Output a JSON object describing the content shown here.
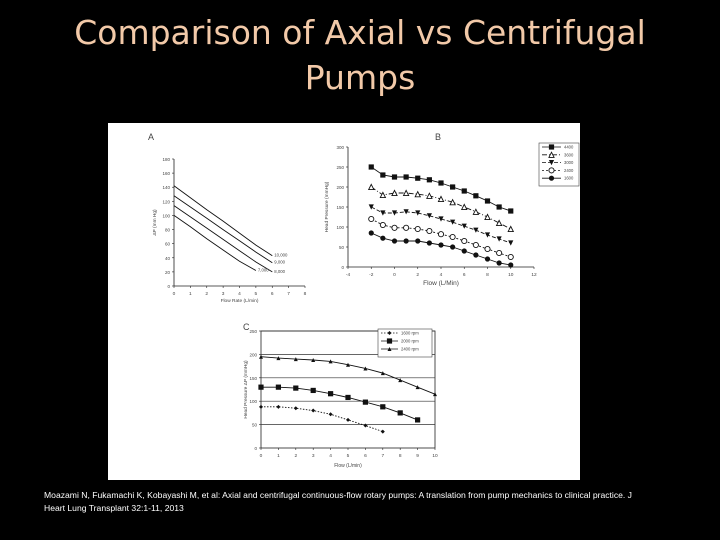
{
  "slide": {
    "title_line1": "Comparison of Axial vs Centrifugal",
    "title_line2": "Pumps",
    "citation_line1": "Moazami N, Fukamachi K, Kobayashi M, et al:  Axial and centrifugal continuous-flow rotary pumps: A translation from pump mechanics to clinical practice. J",
    "citation_line2": "Heart Lung Transplant 32:1-11, 2013"
  },
  "chart_data": [
    {
      "panel": "A",
      "type": "line",
      "xlabel": "Flow Rate (L/min)",
      "ylabel": "ΔP (mm Hg)",
      "xlim": [
        0,
        8
      ],
      "ylim": [
        0,
        180
      ],
      "xticks": [
        "0",
        "1",
        "2",
        "3",
        "4",
        "5",
        "6",
        "7",
        "8"
      ],
      "yticks": [
        "0",
        "20",
        "40",
        "60",
        "80",
        "100",
        "120",
        "140",
        "160",
        "180"
      ],
      "series": [
        {
          "name": "10,000",
          "x": [
            0,
            1,
            2,
            3,
            4,
            5,
            6
          ],
          "y": [
            142,
            125,
            108,
            92,
            75,
            58,
            43
          ]
        },
        {
          "name": "9,000",
          "x": [
            0,
            1,
            2,
            3,
            4,
            5,
            6
          ],
          "y": [
            128,
            112,
            96,
            80,
            64,
            48,
            33
          ]
        },
        {
          "name": "8,000",
          "x": [
            0,
            1,
            2,
            3,
            4,
            5,
            6
          ],
          "y": [
            114,
            98,
            82,
            66,
            50,
            34,
            20
          ]
        },
        {
          "name": "7,000",
          "x": [
            0,
            1,
            2,
            3,
            4,
            5
          ],
          "y": [
            100,
            84,
            67,
            51,
            35,
            22
          ]
        }
      ]
    },
    {
      "panel": "B",
      "type": "line",
      "xlabel": "Flow (L/Min)",
      "ylabel": "Head Pressure (mmHg)",
      "xlim": [
        -4,
        12
      ],
      "ylim": [
        0,
        300
      ],
      "xticks": [
        "-4",
        "-2",
        "0",
        "2",
        "4",
        "6",
        "8",
        "10",
        "12"
      ],
      "yticks": [
        "0",
        "50",
        "100",
        "150",
        "200",
        "250",
        "300"
      ],
      "series": [
        {
          "name": "1600",
          "marker": "circle",
          "x": [
            -2,
            -1,
            0,
            1,
            2,
            3,
            4,
            5,
            6,
            7,
            8,
            9,
            10
          ],
          "y": [
            85,
            72,
            65,
            65,
            65,
            60,
            55,
            50,
            40,
            30,
            20,
            10,
            5
          ]
        },
        {
          "name": "2400",
          "marker": "circle-open",
          "x": [
            -2,
            -1,
            0,
            1,
            2,
            3,
            4,
            5,
            6,
            7,
            8,
            9,
            10
          ],
          "y": [
            120,
            105,
            98,
            98,
            95,
            90,
            82,
            75,
            65,
            55,
            45,
            35,
            25
          ]
        },
        {
          "name": "3000",
          "marker": "triangle-down",
          "x": [
            -2,
            -1,
            0,
            1,
            2,
            3,
            4,
            5,
            6,
            7,
            8,
            9,
            10
          ],
          "y": [
            150,
            135,
            135,
            138,
            135,
            128,
            120,
            112,
            102,
            92,
            80,
            70,
            60
          ]
        },
        {
          "name": "3600",
          "marker": "triangle-open",
          "x": [
            -2,
            -1,
            0,
            1,
            2,
            3,
            4,
            5,
            6,
            7,
            8,
            9,
            10
          ],
          "y": [
            200,
            180,
            185,
            185,
            182,
            178,
            170,
            162,
            150,
            138,
            125,
            110,
            95
          ]
        },
        {
          "name": "4400",
          "marker": "square",
          "x": [
            -2,
            -1,
            0,
            1,
            2,
            3,
            4,
            5,
            6,
            7,
            8,
            9,
            10
          ],
          "y": [
            250,
            230,
            225,
            225,
            222,
            218,
            210,
            200,
            190,
            178,
            165,
            150,
            140
          ]
        }
      ]
    },
    {
      "panel": "C",
      "type": "line",
      "xlabel": "Flow (L/min)",
      "ylabel": "Head Pressure ΔP (mmHg)",
      "xlim": [
        0,
        10
      ],
      "ylim": [
        0,
        250
      ],
      "xticks": [
        "0",
        "1",
        "2",
        "3",
        "4",
        "5",
        "6",
        "7",
        "8",
        "9",
        "10"
      ],
      "yticks": [
        "0",
        "50",
        "100",
        "150",
        "200",
        "250"
      ],
      "grid": "horizontal",
      "series": [
        {
          "name": "1600 rpm",
          "marker": "diamond",
          "x": [
            0,
            1,
            2,
            3,
            4,
            5,
            6,
            7
          ],
          "y": [
            88,
            88,
            85,
            80,
            72,
            60,
            48,
            35
          ]
        },
        {
          "name": "2000 rpm",
          "marker": "square",
          "x": [
            0,
            1,
            2,
            3,
            4,
            5,
            6,
            7,
            8,
            9
          ],
          "y": [
            130,
            130,
            128,
            123,
            116,
            108,
            98,
            88,
            75,
            60
          ]
        },
        {
          "name": "2400 rpm",
          "marker": "triangle",
          "x": [
            0,
            1,
            2,
            3,
            4,
            5,
            6,
            7,
            8,
            9,
            10
          ],
          "y": [
            195,
            192,
            190,
            188,
            185,
            178,
            170,
            160,
            145,
            130,
            115
          ]
        }
      ]
    }
  ]
}
